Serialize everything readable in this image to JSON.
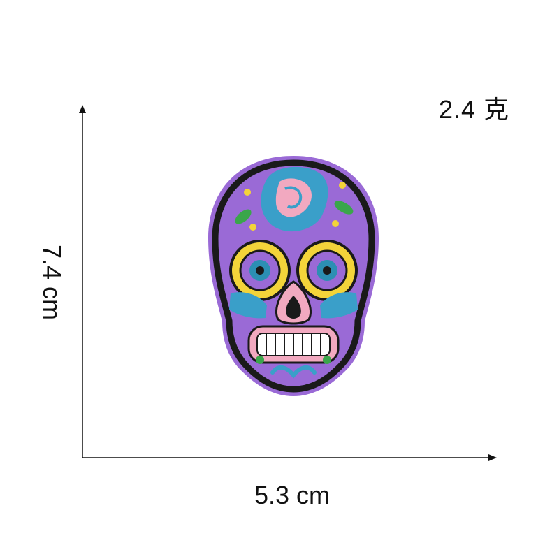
{
  "weight_text": "2.4 克",
  "width_text": "5.3 cm",
  "height_text": "7.4 cm",
  "patch": {
    "icon": "sugar-skull-patch-icon",
    "colors": {
      "felt": "#9a6ad6",
      "outline": "#1a1a1a",
      "rose": "#3a9fc9",
      "rose_accent": "#f2a9c0",
      "eye_ring": "#f3d43a",
      "eye": "#2c8fb3",
      "nose": "#f2a9c0",
      "teeth": "#ffffff",
      "leaf": "#3aa64b"
    }
  }
}
